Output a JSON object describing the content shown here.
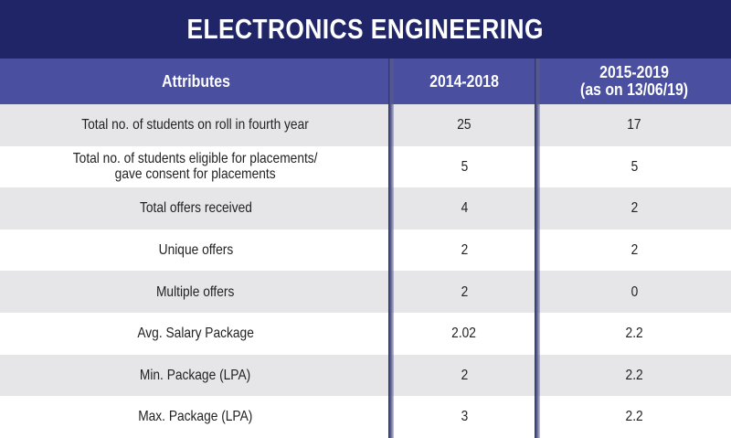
{
  "chart_data": {
    "type": "table",
    "title": "ELECTRONICS ENGINEERING",
    "columns": [
      "Attributes",
      "2014-2018",
      "2015-2019\n(as on 13/06/19)"
    ],
    "header": {
      "attributes": "Attributes",
      "col1": "2014-2018",
      "col2_line1": "2015-2019",
      "col2_line2": "(as on 13/06/19)"
    },
    "rows": [
      {
        "attribute": "Total no. of students on roll in fourth year",
        "v2014_2018": "25",
        "v2015_2019": "17"
      },
      {
        "attribute": "Total no. of students eligible for placements/\ngave consent for placements",
        "v2014_2018": "5",
        "v2015_2019": "5"
      },
      {
        "attribute": "Total offers received",
        "v2014_2018": "4",
        "v2015_2019": "2"
      },
      {
        "attribute": "Unique offers",
        "v2014_2018": "2",
        "v2015_2019": "2"
      },
      {
        "attribute": "Multiple offers",
        "v2014_2018": "2",
        "v2015_2019": "0"
      },
      {
        "attribute": "Avg. Salary Package",
        "v2014_2018": "2.02",
        "v2015_2019": "2.2"
      },
      {
        "attribute": "Min. Package (LPA)",
        "v2014_2018": "2",
        "v2015_2019": "2.2"
      },
      {
        "attribute": "Max. Package (LPA)",
        "v2014_2018": "3",
        "v2015_2019": "2.2"
      }
    ]
  },
  "colors": {
    "title_bg": "#1f2566",
    "header_bg": "#4a4fa0",
    "row_alt_bg": "#e6e6e9",
    "text": "#222222"
  }
}
